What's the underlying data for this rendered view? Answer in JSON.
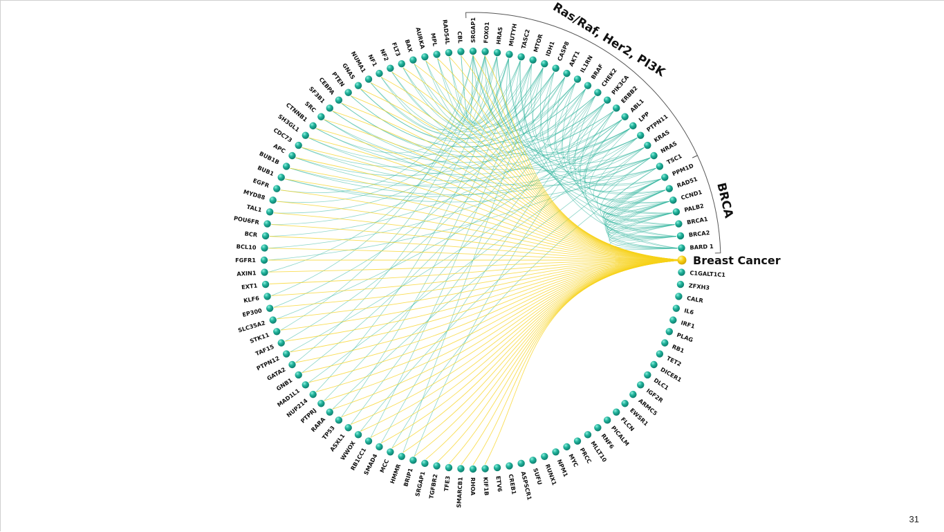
{
  "diagram": {
    "hub": {
      "label": "Breast Cancer",
      "color": "#f7cc10"
    },
    "colors": {
      "node": "#1aa590",
      "node_highlight": "#6fdcc8",
      "edge": "#2bb39a",
      "hub_edge": "#f7d21a",
      "bracket": "#555555"
    },
    "groups": [
      {
        "name": "Ras/Raf, Her2, PI3K",
        "genes": [
          "SRGAP1",
          "FOXO1",
          "HRAS",
          "MUTYH",
          "TASC2",
          "MTOR",
          "IDH1",
          "CASP8",
          "AKT1",
          "IL1RN",
          "BRAF",
          "CHEK2",
          "PIK3CA",
          "ERBB2",
          "ABL1",
          "LPP",
          "PTPN11",
          "KRAS",
          "NRAS",
          "TSC1"
        ]
      },
      {
        "name": "BRCA",
        "genes": [
          "PPM1D",
          "RAD51",
          "CCND1",
          "PALB2",
          "BRCA1",
          "BRCA2",
          "BARD 1"
        ]
      }
    ],
    "genes_clockwise_from_hub": [
      "C1GALT1C1",
      "ZFXH3",
      "CALR",
      "IL6",
      "IRF1",
      "PLAG",
      "RB1",
      "TET2",
      "DICER1",
      "DLC1",
      "IGF2R",
      "ARMC5",
      "EWSR1",
      "FLCN",
      "PICALM",
      "RNF6",
      "MLLT10",
      "PRCC",
      "MYC",
      "NPM1",
      "RUNX1",
      "SUFU",
      "ASPSCR1",
      "CREB1",
      "ETV6",
      "KIF1B",
      "RHOA",
      "SMARCB1",
      "TFE3",
      "TGFBR2",
      "SRGAP1",
      "BRIP1",
      "HMMR",
      "MCC",
      "SMAD4",
      "RB1CC1",
      "WWOX",
      "ASXL1",
      "TP53",
      "RARA",
      "PTPRJ",
      "NUP214",
      "MAD1L1",
      "GNB1",
      "GATA2",
      "PTPN12",
      "TAF15",
      "STK11",
      "SLC35A2",
      "EP300",
      "KLF6",
      "EXT1",
      "AXIN1",
      "FGFR1",
      "BCL10",
      "BCR",
      "POU6FR",
      "TAL1",
      "MYD88",
      "EGFR",
      "BUB1",
      "BUB1B",
      "APC",
      "CDC73",
      "SH3GL1",
      "CTNNB1",
      "SRC",
      "SF3B1",
      "CEBPA",
      "PTEN",
      "GNAS",
      "NUMA1",
      "NF1",
      "NF2",
      "FLT3",
      "BAX",
      "AURKA",
      "MPL",
      "RAD54L",
      "CBL",
      "SRGAP1",
      "FOXO1",
      "HRAS",
      "MUTYH",
      "TASC2",
      "MTOR",
      "IDH1",
      "CASP8",
      "AKT1",
      "IL1RN",
      "BRAF",
      "CHEK2",
      "PIK3CA",
      "ERBB2",
      "ABL1",
      "LPP",
      "PTPN11",
      "KRAS",
      "NRAS",
      "TSC1",
      "PPM1D",
      "RAD51",
      "CCND1",
      "PALB2",
      "BRCA1",
      "BRCA2",
      "BARD 1"
    ]
  },
  "page_number": "31"
}
